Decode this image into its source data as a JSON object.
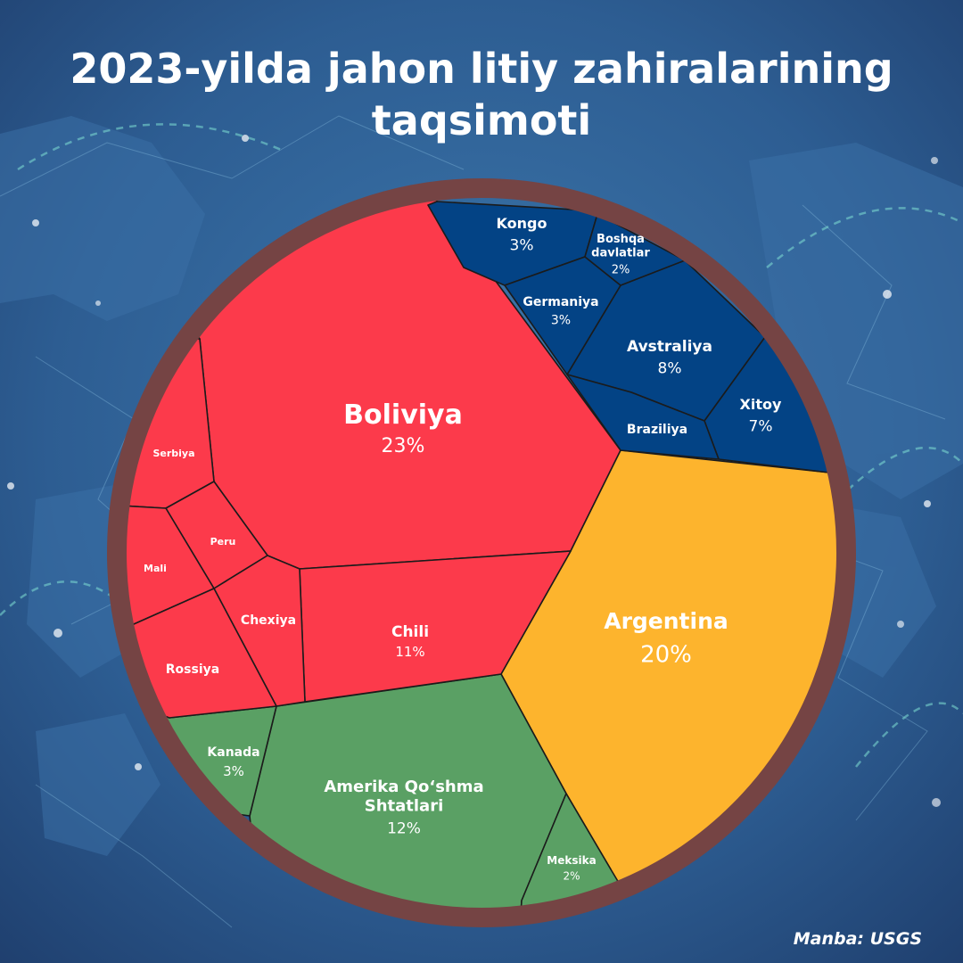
{
  "title": [
    "2023-yilda jahon litiy zahiralarining",
    "taqsimoti"
  ],
  "source": "Manba: USGS",
  "colors": {
    "red": "#fc3a4b",
    "blue": "#034385",
    "green": "#5aa064",
    "yellow": "#fdb42d",
    "rim": "#754444",
    "background": "#2f5e8f"
  },
  "chart_data": {
    "type": "voronoi-treemap",
    "title": "2023-yilda jahon litiy zahiralarining taqsimoti",
    "groups": [
      {
        "color": "red",
        "countries": [
          "Boliviya",
          "Chili",
          "Serbiya",
          "Peru",
          "Mali",
          "Chexiya",
          "Rossiya"
        ]
      },
      {
        "color": "yellow",
        "countries": [
          "Argentina"
        ]
      },
      {
        "color": "green",
        "countries": [
          "Amerika Qo‘shma Shtatlari",
          "Kanada",
          "Meksika"
        ]
      },
      {
        "color": "blue",
        "countries": [
          "Kongo",
          "Boshqa davlatlar",
          "Germaniya",
          "Avstraliya",
          "Xitoy",
          "Braziliya"
        ]
      }
    ],
    "cells": [
      {
        "name": "Boliviya",
        "label": "Boliviya",
        "value_label": "23%",
        "value": 23,
        "group": "red"
      },
      {
        "name": "Argentina",
        "label": "Argentina",
        "value_label": "20%",
        "value": 20,
        "group": "yellow"
      },
      {
        "name": "Amerika Qo‘shma Shtatlari",
        "label": "Amerika Qo‘shma|Shtatlari",
        "value_label": "12%",
        "value": 12,
        "group": "green"
      },
      {
        "name": "Chili",
        "label": "Chili",
        "value_label": "11%",
        "value": 11,
        "group": "red"
      },
      {
        "name": "Avstraliya",
        "label": "Avstraliya",
        "value_label": "8%",
        "value": 8,
        "group": "blue"
      },
      {
        "name": "Xitoy",
        "label": "Xitoy",
        "value_label": "7%",
        "value": 7,
        "group": "blue"
      },
      {
        "name": "Kongo",
        "label": "Kongo",
        "value_label": "3%",
        "value": 3,
        "group": "blue"
      },
      {
        "name": "Germaniya",
        "label": "Germaniya",
        "value_label": "3%",
        "value": 3,
        "group": "blue"
      },
      {
        "name": "Kanada",
        "label": "Kanada",
        "value_label": "3%",
        "value": 3,
        "group": "green"
      },
      {
        "name": "Boshqa davlatlar",
        "label": "Boshqa|davlatlar",
        "value_label": "2%",
        "value": 2,
        "group": "blue"
      },
      {
        "name": "Meksika",
        "label": "Meksika",
        "value_label": "2%",
        "value": 2,
        "group": "green"
      },
      {
        "name": "Braziliya",
        "label": "Braziliya",
        "value_label": "",
        "value": null,
        "group": "blue"
      },
      {
        "name": "Serbiya",
        "label": "Serbiya",
        "value_label": "",
        "value": null,
        "group": "red"
      },
      {
        "name": "Peru",
        "label": "Peru",
        "value_label": "",
        "value": null,
        "group": "red"
      },
      {
        "name": "Mali",
        "label": "Mali",
        "value_label": "",
        "value": null,
        "group": "red"
      },
      {
        "name": "Chexiya",
        "label": "Chexiya",
        "value_label": "",
        "value": null,
        "group": "red"
      },
      {
        "name": "Rossiya",
        "label": "Rossiya",
        "value_label": "",
        "value": null,
        "group": "red"
      }
    ]
  }
}
